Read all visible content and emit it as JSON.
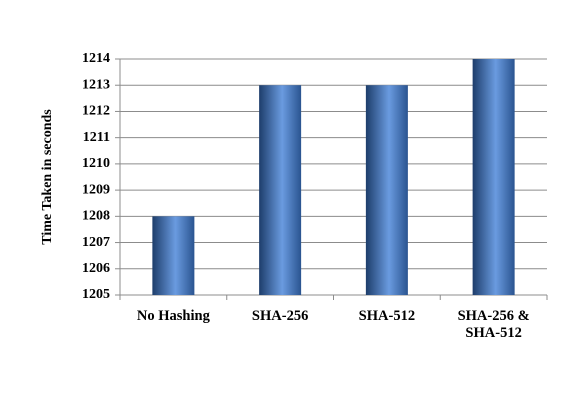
{
  "chart_data": {
    "type": "bar",
    "y_label": "Time Taken in seconds",
    "categories": [
      "No Hashing",
      "SHA-256",
      "SHA-512",
      "SHA-256 & SHA-512"
    ],
    "values": [
      1208,
      1213,
      1213,
      1214
    ],
    "color": "#6a9be0",
    "ylim": [
      1205,
      1214
    ],
    "yticks": [
      1205,
      1206,
      1207,
      1208,
      1209,
      1210,
      1211,
      1212,
      1213,
      1214
    ],
    "grid": true
  }
}
